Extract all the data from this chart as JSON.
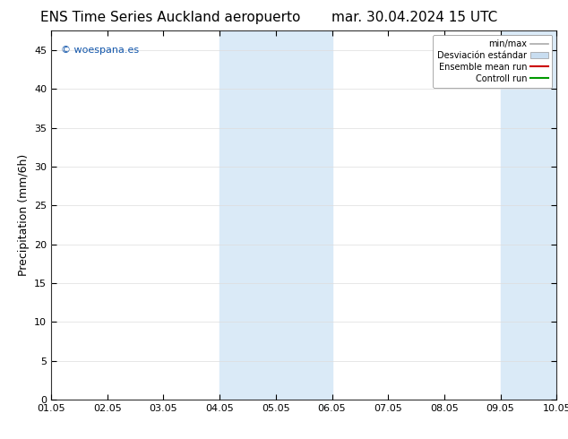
{
  "title_left": "ENS Time Series Auckland aeropuerto",
  "title_right": "mar. 30.04.2024 15 UTC",
  "ylabel": "Precipitation (mm/6h)",
  "watermark": "© woespana.es",
  "xticklabels": [
    "01.05",
    "02.05",
    "03.05",
    "04.05",
    "05.05",
    "06.05",
    "07.05",
    "08.05",
    "09.05",
    "10.05"
  ],
  "yticks": [
    0,
    5,
    10,
    15,
    20,
    25,
    30,
    35,
    40,
    45
  ],
  "ylim": [
    0,
    47.5
  ],
  "xlim": [
    0,
    9
  ],
  "shaded_bands": [
    {
      "xmin": 3.0,
      "xmax": 5.0
    },
    {
      "xmin": 8.0,
      "xmax": 9.0
    }
  ],
  "shade_color": "#daeaf7",
  "bg_color": "#ffffff",
  "legend_labels": [
    "min/max",
    "Desviación estándar",
    "Ensemble mean run",
    "Controll run"
  ],
  "legend_colors": [
    "#aaaaaa",
    "#c8ddf0",
    "#cc0000",
    "#009900"
  ],
  "title_fontsize": 11,
  "axis_label_fontsize": 9,
  "tick_fontsize": 8,
  "legend_fontsize": 7,
  "watermark_fontsize": 8,
  "watermark_color": "#1155aa"
}
